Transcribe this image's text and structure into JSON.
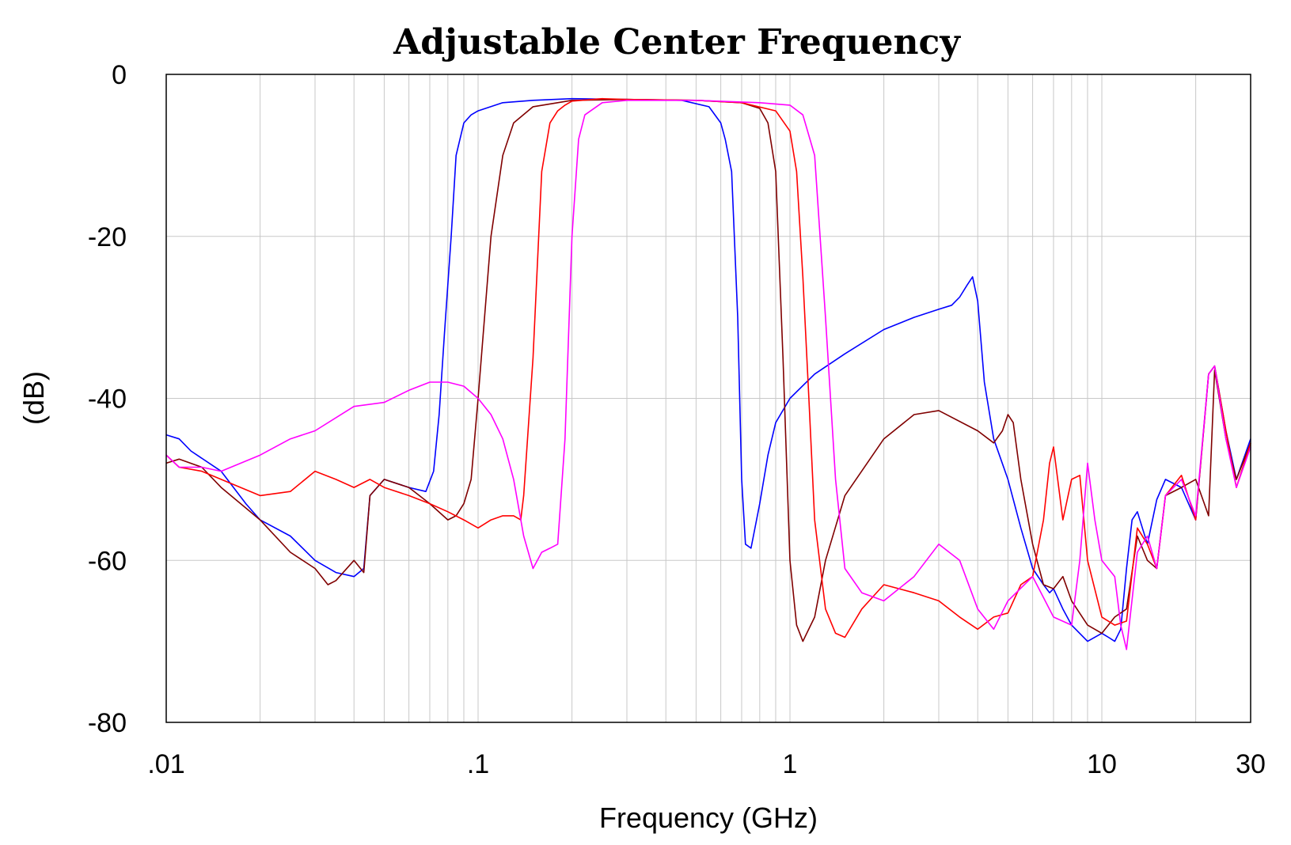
{
  "chart_data": {
    "type": "line",
    "title": "Adjustable Center Frequency",
    "xlabel": "Frequency (GHz)",
    "ylabel": "(dB)",
    "xscale": "log",
    "xlim": [
      0.01,
      30
    ],
    "ylim": [
      -80,
      0
    ],
    "xticks": [
      {
        "value": 0.01,
        "label": ".01"
      },
      {
        "value": 0.1,
        "label": ".1"
      },
      {
        "value": 1,
        "label": "1"
      },
      {
        "value": 10,
        "label": "10"
      },
      {
        "value": 30,
        "label": "30"
      }
    ],
    "yticks": [
      {
        "value": 0,
        "label": "0"
      },
      {
        "value": -20,
        "label": "-20"
      },
      {
        "value": -40,
        "label": "-40"
      },
      {
        "value": -60,
        "label": "-60"
      },
      {
        "value": -80,
        "label": "-80"
      }
    ],
    "grid": true,
    "legend": "none",
    "series": [
      {
        "color": "#0000ff",
        "x": [
          0.01,
          0.011,
          0.012,
          0.015,
          0.018,
          0.02,
          0.025,
          0.03,
          0.035,
          0.04,
          0.043,
          0.045,
          0.05,
          0.06,
          0.068,
          0.072,
          0.075,
          0.078,
          0.082,
          0.085,
          0.09,
          0.095,
          0.1,
          0.12,
          0.15,
          0.2,
          0.3,
          0.45,
          0.55,
          0.6,
          0.62,
          0.65,
          0.68,
          0.7,
          0.72,
          0.75,
          0.8,
          0.85,
          0.9,
          1.0,
          1.2,
          1.5,
          2.0,
          2.5,
          3.0,
          3.3,
          3.5,
          3.7,
          3.85,
          4.0,
          4.2,
          4.5,
          5.0,
          5.5,
          6.0,
          6.5,
          6.8,
          7.0,
          7.5,
          8.0,
          9.0,
          10.0,
          10.5,
          11.0,
          11.5,
          12.0,
          12.5,
          13.0,
          14.0,
          15.0,
          16.0,
          18.0,
          20.0,
          22.0,
          23.0,
          25.0,
          27.0,
          30.0
        ],
        "y": [
          -44.5,
          -45,
          -46.5,
          -49,
          -53,
          -55,
          -57,
          -60,
          -61.5,
          -62,
          -61,
          -52,
          -50,
          -51,
          -51.5,
          -49,
          -42,
          -32,
          -20,
          -10,
          -6,
          -5,
          -4.5,
          -3.5,
          -3.2,
          -3.0,
          -3.1,
          -3.2,
          -4,
          -6,
          -8,
          -12,
          -30,
          -50,
          -58,
          -58.5,
          -53,
          -47,
          -43,
          -40,
          -37,
          -34.5,
          -31.5,
          -30,
          -29,
          -28.5,
          -27.5,
          -26,
          -25,
          -28,
          -38,
          -45,
          -50,
          -56,
          -61,
          -63,
          -64,
          -63.5,
          -66,
          -68,
          -70,
          -69,
          -69.5,
          -70,
          -68.5,
          -61,
          -55,
          -54,
          -58,
          -52.5,
          -50,
          -51,
          -55,
          -37,
          -36,
          -44,
          -50,
          -45
        ]
      },
      {
        "color": "#800000",
        "x": [
          0.01,
          0.011,
          0.013,
          0.015,
          0.02,
          0.025,
          0.03,
          0.033,
          0.035,
          0.04,
          0.043,
          0.045,
          0.05,
          0.06,
          0.07,
          0.08,
          0.085,
          0.09,
          0.095,
          0.1,
          0.11,
          0.12,
          0.13,
          0.15,
          0.2,
          0.3,
          0.5,
          0.7,
          0.8,
          0.85,
          0.9,
          0.95,
          1.0,
          1.05,
          1.1,
          1.2,
          1.3,
          1.5,
          2.0,
          2.5,
          3.0,
          4.0,
          4.5,
          4.8,
          5.0,
          5.2,
          5.5,
          6.0,
          6.5,
          7.0,
          7.5,
          8.0,
          9.0,
          10.0,
          11.0,
          12.0,
          13.0,
          14.0,
          15.0,
          16.0,
          18.0,
          20.0,
          22.0,
          23.0,
          25.0,
          27.0,
          30.0
        ],
        "y": [
          -48,
          -47.5,
          -48.5,
          -51,
          -55,
          -59,
          -61,
          -63,
          -62.5,
          -60,
          -61.5,
          -52,
          -50,
          -51,
          -53,
          -55,
          -54.5,
          -53,
          -50,
          -40,
          -20,
          -10,
          -6,
          -4,
          -3.2,
          -3.1,
          -3.2,
          -3.5,
          -4.2,
          -6,
          -12,
          -35,
          -60,
          -68,
          -70,
          -67,
          -60,
          -52,
          -45,
          -42,
          -41.5,
          -44,
          -45.5,
          -44,
          -42,
          -43,
          -50,
          -58,
          -63,
          -63.5,
          -62,
          -65,
          -68,
          -69,
          -67,
          -66,
          -57,
          -60,
          -61,
          -52,
          -51,
          -50,
          -54.5,
          -36.5,
          -45,
          -50,
          -45.5
        ]
      },
      {
        "color": "#ff0000",
        "x": [
          0.01,
          0.011,
          0.013,
          0.015,
          0.02,
          0.025,
          0.03,
          0.035,
          0.04,
          0.045,
          0.05,
          0.06,
          0.07,
          0.08,
          0.09,
          0.1,
          0.11,
          0.12,
          0.13,
          0.137,
          0.14,
          0.15,
          0.16,
          0.17,
          0.18,
          0.19,
          0.2,
          0.25,
          0.3,
          0.5,
          0.7,
          0.9,
          1.0,
          1.05,
          1.1,
          1.15,
          1.2,
          1.3,
          1.4,
          1.5,
          1.7,
          2.0,
          2.5,
          3.0,
          3.5,
          4.0,
          4.5,
          5.0,
          5.5,
          6.0,
          6.5,
          6.8,
          7.0,
          7.5,
          8.0,
          8.5,
          9.0,
          10.0,
          11.0,
          12.0,
          13.0,
          14.0,
          15.0,
          16.0,
          18.0,
          20.0,
          22.0,
          23.0,
          25.0,
          27.0,
          30.0
        ],
        "y": [
          -47,
          -48.5,
          -49,
          -50,
          -52,
          -51.5,
          -49,
          -50,
          -51,
          -50,
          -51,
          -52,
          -53,
          -54,
          -55,
          -56,
          -55,
          -54.5,
          -54.5,
          -55,
          -52,
          -35,
          -12,
          -6,
          -4.5,
          -3.8,
          -3.3,
          -3.0,
          -3.1,
          -3.2,
          -3.5,
          -4.5,
          -7,
          -12,
          -25,
          -40,
          -55,
          -66,
          -69,
          -69.5,
          -66,
          -63,
          -64,
          -65,
          -67,
          -68.5,
          -67,
          -66.5,
          -63,
          -62,
          -55,
          -48,
          -46,
          -55,
          -50,
          -49.5,
          -60,
          -67,
          -68,
          -67.5,
          -56,
          -58,
          -61,
          -52,
          -49.5,
          -55,
          -37,
          -36,
          -44,
          -51,
          -45.5
        ]
      },
      {
        "color": "#ff00ff",
        "x": [
          0.01,
          0.011,
          0.013,
          0.015,
          0.02,
          0.025,
          0.03,
          0.04,
          0.05,
          0.06,
          0.07,
          0.08,
          0.09,
          0.1,
          0.11,
          0.12,
          0.13,
          0.14,
          0.15,
          0.16,
          0.17,
          0.18,
          0.19,
          0.2,
          0.21,
          0.22,
          0.25,
          0.3,
          0.5,
          0.8,
          1.0,
          1.1,
          1.2,
          1.3,
          1.4,
          1.5,
          1.7,
          2.0,
          2.5,
          3.0,
          3.5,
          4.0,
          4.5,
          5.0,
          6.0,
          7.0,
          8.0,
          8.5,
          9.0,
          9.5,
          10.0,
          11.0,
          11.5,
          12.0,
          13.0,
          14.0,
          15.0,
          16.0,
          18.0,
          20.0,
          22.0,
          23.0,
          25.0,
          27.0,
          30.0
        ],
        "y": [
          -47,
          -48.5,
          -48.5,
          -49,
          -47,
          -45,
          -44,
          -41,
          -40.5,
          -39,
          -38,
          -38,
          -38.5,
          -40,
          -42,
          -45,
          -50,
          -57,
          -61,
          -59,
          -58.5,
          -58,
          -45,
          -20,
          -8,
          -5,
          -3.5,
          -3.2,
          -3.2,
          -3.5,
          -3.8,
          -5,
          -10,
          -30,
          -50,
          -61,
          -64,
          -65,
          -62,
          -58,
          -60,
          -66,
          -68.5,
          -65,
          -62,
          -67,
          -68,
          -60,
          -48,
          -55,
          -60,
          -62,
          -68,
          -71,
          -59,
          -57,
          -61,
          -52,
          -50,
          -54.5,
          -37,
          -36,
          -45,
          -51,
          -46
        ]
      }
    ]
  }
}
